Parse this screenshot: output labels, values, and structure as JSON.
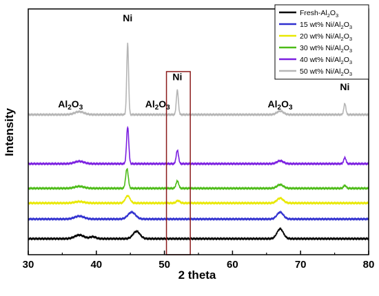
{
  "chart_data": {
    "type": "line",
    "xlabel": "2 theta",
    "ylabel": "Intensity",
    "xlim": [
      30,
      80
    ],
    "x_ticks": [
      "30",
      "40",
      "50",
      "60",
      "70",
      "80"
    ],
    "ylim": [
      0,
      1
    ],
    "y_ticks_shown": false,
    "grid": false,
    "legend_position": "top-right",
    "series": [
      {
        "name_main": "Fresh-Al",
        "name_sub": "2",
        "name_mid": "O",
        "name_sub2": "3",
        "color": "#000000",
        "baseline": 0.065,
        "peaks": [
          {
            "x": 37.5,
            "h": 0.015,
            "w": 1.6
          },
          {
            "x": 39.5,
            "h": 0.008,
            "w": 1.0
          },
          {
            "x": 45.9,
            "h": 0.03,
            "w": 1.2
          },
          {
            "x": 67.0,
            "h": 0.04,
            "w": 1.1
          }
        ]
      },
      {
        "name_main": "15 wt% Ni/Al",
        "name_sub": "2",
        "name_mid": "O",
        "name_sub2": "3",
        "color": "#2f2fcf",
        "baseline": 0.145,
        "peaks": [
          {
            "x": 37.5,
            "h": 0.012,
            "w": 1.6
          },
          {
            "x": 45.2,
            "h": 0.028,
            "w": 1.3
          },
          {
            "x": 67.0,
            "h": 0.028,
            "w": 1.1
          }
        ]
      },
      {
        "name_main": "20 wt% Ni/Al",
        "name_sub": "2",
        "name_mid": "O",
        "name_sub2": "3",
        "color": "#e8e800",
        "baseline": 0.21,
        "peaks": [
          {
            "x": 37.5,
            "h": 0.006,
            "w": 1.6
          },
          {
            "x": 44.6,
            "h": 0.03,
            "w": 0.8
          },
          {
            "x": 52.0,
            "h": 0.01,
            "w": 0.6
          },
          {
            "x": 67.0,
            "h": 0.02,
            "w": 1.1
          }
        ]
      },
      {
        "name_main": "30 wt% Ni/Al",
        "name_sub": "2",
        "name_mid": "O",
        "name_sub2": "3",
        "color": "#4cbb17",
        "baseline": 0.27,
        "peaks": [
          {
            "x": 37.5,
            "h": 0.008,
            "w": 1.6
          },
          {
            "x": 44.5,
            "h": 0.08,
            "w": 0.45
          },
          {
            "x": 51.9,
            "h": 0.03,
            "w": 0.45
          },
          {
            "x": 67.0,
            "h": 0.015,
            "w": 1.1
          },
          {
            "x": 76.5,
            "h": 0.012,
            "w": 0.45
          }
        ]
      },
      {
        "name_main": "40 wt% Ni/Al",
        "name_sub": "2",
        "name_mid": "O",
        "name_sub2": "3",
        "color": "#7b1fe0",
        "baseline": 0.37,
        "peaks": [
          {
            "x": 37.5,
            "h": 0.01,
            "w": 1.6
          },
          {
            "x": 44.6,
            "h": 0.15,
            "w": 0.38
          },
          {
            "x": 51.9,
            "h": 0.055,
            "w": 0.4
          },
          {
            "x": 67.0,
            "h": 0.012,
            "w": 1.1
          },
          {
            "x": 76.5,
            "h": 0.025,
            "w": 0.4
          }
        ]
      },
      {
        "name_main": "50 wt% Ni/Al",
        "name_sub": "2",
        "name_mid": "O",
        "name_sub2": "3",
        "color": "#b5b5b5",
        "baseline": 0.57,
        "peaks": [
          {
            "x": 37.5,
            "h": 0.012,
            "w": 1.6
          },
          {
            "x": 44.6,
            "h": 0.29,
            "w": 0.32
          },
          {
            "x": 51.9,
            "h": 0.1,
            "w": 0.35
          },
          {
            "x": 67.0,
            "h": 0.015,
            "w": 1.1
          },
          {
            "x": 76.5,
            "h": 0.045,
            "w": 0.35
          }
        ]
      }
    ],
    "annotations": [
      {
        "main": "Ni",
        "sub": "",
        "mid": "",
        "sub2": "",
        "x": 44.6,
        "y": 0.95
      },
      {
        "main": "Al",
        "sub": "2",
        "mid": "O",
        "sub2": "3",
        "x": 36.2,
        "y": 0.6
      },
      {
        "main": "Al",
        "sub": "2",
        "mid": "O",
        "sub2": "3",
        "x": 49.0,
        "y": 0.6
      },
      {
        "main": "Ni",
        "sub": "",
        "mid": "",
        "sub2": "",
        "x": 51.9,
        "y": 0.71
      },
      {
        "main": "Al",
        "sub": "2",
        "mid": "O",
        "sub2": "3",
        "x": 67.0,
        "y": 0.6
      },
      {
        "main": "Ni",
        "sub": "",
        "mid": "",
        "sub2": "",
        "x": 76.5,
        "y": 0.67
      }
    ],
    "highlight_box": {
      "x_from": 50.3,
      "x_to": 53.8,
      "y_from": 0.0,
      "y_to": 0.745,
      "color": "#8b1a1a"
    }
  }
}
